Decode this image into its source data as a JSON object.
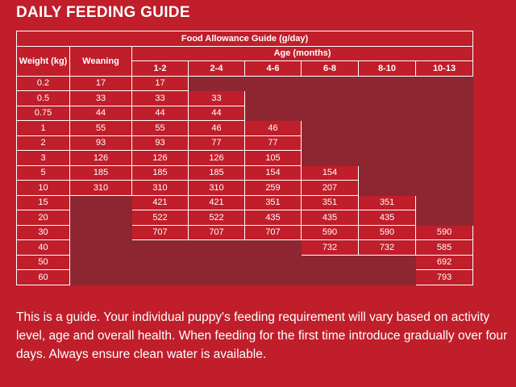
{
  "title": "DAILY FEEDING GUIDE",
  "table": {
    "caption": "Food Allowance Guide (g/day)",
    "weight_header": "Weight (kg)",
    "weaning_header": "Weaning",
    "age_header": "Age (months)",
    "age_columns": [
      "1-2",
      "2-4",
      "4-6",
      "6-8",
      "8-10",
      "10-13"
    ],
    "rows": [
      {
        "weight": "0.2",
        "weaning": "17",
        "ages": [
          "17",
          "",
          "",
          "",
          "",
          ""
        ]
      },
      {
        "weight": "0.5",
        "weaning": "33",
        "ages": [
          "33",
          "33",
          "",
          "",
          "",
          ""
        ]
      },
      {
        "weight": "0.75",
        "weaning": "44",
        "ages": [
          "44",
          "44",
          "",
          "",
          "",
          ""
        ]
      },
      {
        "weight": "1",
        "weaning": "55",
        "ages": [
          "55",
          "46",
          "46",
          "",
          "",
          ""
        ]
      },
      {
        "weight": "2",
        "weaning": "93",
        "ages": [
          "93",
          "77",
          "77",
          "",
          "",
          ""
        ]
      },
      {
        "weight": "3",
        "weaning": "126",
        "ages": [
          "126",
          "126",
          "105",
          "",
          "",
          ""
        ]
      },
      {
        "weight": "5",
        "weaning": "185",
        "ages": [
          "185",
          "185",
          "154",
          "154",
          "",
          ""
        ]
      },
      {
        "weight": "10",
        "weaning": "310",
        "ages": [
          "310",
          "310",
          "259",
          "207",
          "",
          ""
        ]
      },
      {
        "weight": "15",
        "weaning": "",
        "ages": [
          "421",
          "421",
          "351",
          "351",
          "351",
          ""
        ]
      },
      {
        "weight": "20",
        "weaning": "",
        "ages": [
          "522",
          "522",
          "435",
          "435",
          "435",
          ""
        ]
      },
      {
        "weight": "30",
        "weaning": "",
        "ages": [
          "707",
          "707",
          "707",
          "590",
          "590",
          "590"
        ]
      },
      {
        "weight": "40",
        "weaning": "",
        "ages": [
          "",
          "",
          "",
          "732",
          "732",
          "585"
        ]
      },
      {
        "weight": "50",
        "weaning": "",
        "ages": [
          "",
          "",
          "",
          "",
          "",
          "692"
        ]
      },
      {
        "weight": "60",
        "weaning": "",
        "ages": [
          "",
          "",
          "",
          "",
          "",
          "793"
        ]
      }
    ]
  },
  "footnote": "This is a guide. Your individual puppy's feeding requirement will vary based on activity level, age and overall health. When feeding for the first time introduce gradually over four days. Always ensure clean water is available.",
  "colors": {
    "background": "#bf1e2a",
    "empty_cell": "#8e2632",
    "text": "#ffffff"
  }
}
